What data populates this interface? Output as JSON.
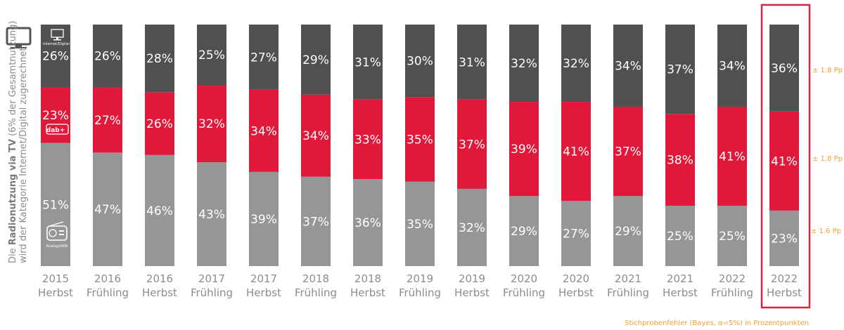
{
  "chart_data": {
    "type": "bar",
    "stacked": true,
    "normalized": true,
    "categories": [
      [
        "2015",
        "Herbst"
      ],
      [
        "2016",
        "Frühling"
      ],
      [
        "2016",
        "Herbst"
      ],
      [
        "2017",
        "Frühling"
      ],
      [
        "2017",
        "Herbst"
      ],
      [
        "2018",
        "Frühling"
      ],
      [
        "2018",
        "Herbst"
      ],
      [
        "2019",
        "Frühling"
      ],
      [
        "2019",
        "Herbst"
      ],
      [
        "2020",
        "Frühling"
      ],
      [
        "2020",
        "Herbst"
      ],
      [
        "2021",
        "Frühling"
      ],
      [
        "2021",
        "Herbst"
      ],
      [
        "2022",
        "Frühling"
      ],
      [
        "2022",
        "Herbst"
      ]
    ],
    "series": [
      {
        "key": "analog",
        "color": "#969696",
        "icon": "radio-icon",
        "icon_label": "Analog/UKW",
        "values": [
          51,
          47,
          46,
          43,
          39,
          37,
          36,
          35,
          32,
          29,
          27,
          29,
          25,
          25,
          23
        ]
      },
      {
        "key": "dab",
        "color": "#e0183a",
        "icon": "dab-plus-icon",
        "icon_label": "dab+",
        "values": [
          23,
          27,
          26,
          32,
          34,
          34,
          33,
          35,
          37,
          39,
          41,
          37,
          38,
          41,
          41
        ]
      },
      {
        "key": "internet",
        "color": "#505050",
        "icon": "computer-icon",
        "icon_label": "Internet/Digital",
        "values": [
          26,
          26,
          28,
          25,
          27,
          29,
          31,
          30,
          31,
          32,
          32,
          34,
          37,
          34,
          36
        ]
      }
    ],
    "value_suffix": "%",
    "highlighted_index": 14,
    "highlight_color": "#d4243f",
    "error_labels": [
      "± 1.8 Pp",
      "± 1.8 Pp",
      "±  1.6 Pp"
    ],
    "error_color": "#f0a030"
  },
  "y_label": {
    "line1_prefix": "Die ",
    "line1_bold": "Radionutzung via TV",
    "line1_suffix": " (6% der Gesamtnutzung)",
    "line2": "wird der Kategorie Internet/Digital zugerechnet"
  },
  "footnote": "Stichprobenfehler (Bayes, α=5%) in Prozentpunkten"
}
